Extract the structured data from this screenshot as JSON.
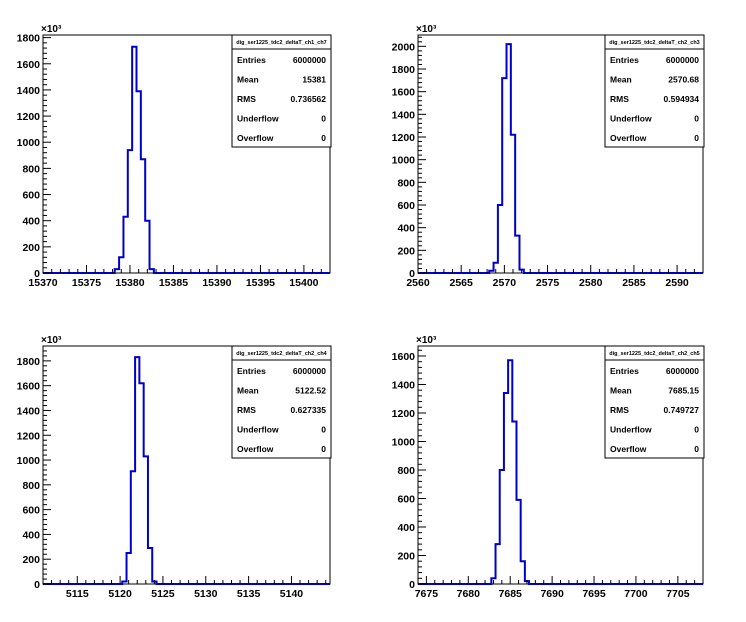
{
  "chart_data": [
    {
      "type": "histogram",
      "title": "dig_ser1225_tdc2_deltaT_ch1_ch7",
      "xlim": [
        15370,
        15403
      ],
      "ylim": [
        0,
        1820
      ],
      "y_exponent_label": "×10³",
      "x_ticks": [
        15370,
        15375,
        15380,
        15385,
        15390,
        15395,
        15400
      ],
      "y_ticks": [
        0,
        200,
        400,
        600,
        800,
        1000,
        1200,
        1400,
        1600,
        1800
      ],
      "bin_width": 0.5,
      "bins": [
        {
          "x": 15378.5,
          "y": 30
        },
        {
          "x": 15379.0,
          "y": 120
        },
        {
          "x": 15379.5,
          "y": 430
        },
        {
          "x": 15380.0,
          "y": 940
        },
        {
          "x": 15380.5,
          "y": 1730
        },
        {
          "x": 15381.0,
          "y": 1390
        },
        {
          "x": 15381.5,
          "y": 870
        },
        {
          "x": 15382.0,
          "y": 400
        },
        {
          "x": 15382.5,
          "y": 30
        }
      ],
      "stats": [
        {
          "label": "Entries",
          "value": "6000000"
        },
        {
          "label": "Mean",
          "value": "15381"
        },
        {
          "label": "RMS",
          "value": "0.736562"
        },
        {
          "label": "Underflow",
          "value": "0"
        },
        {
          "label": "Overflow",
          "value": "0"
        }
      ]
    },
    {
      "type": "histogram",
      "title": "dig_ser1225_tdc2_deltaT_ch2_ch3",
      "xlim": [
        2560,
        2593
      ],
      "ylim": [
        0,
        2100
      ],
      "y_exponent_label": "×10³",
      "x_ticks": [
        2560,
        2565,
        2570,
        2575,
        2580,
        2585,
        2590
      ],
      "y_ticks": [
        0,
        200,
        400,
        600,
        800,
        1000,
        1200,
        1400,
        1600,
        1800,
        2000
      ],
      "bin_width": 0.5,
      "bins": [
        {
          "x": 2568.5,
          "y": 20
        },
        {
          "x": 2569.0,
          "y": 90
        },
        {
          "x": 2569.5,
          "y": 600
        },
        {
          "x": 2570.0,
          "y": 1720
        },
        {
          "x": 2570.5,
          "y": 2020
        },
        {
          "x": 2571.0,
          "y": 1220
        },
        {
          "x": 2571.5,
          "y": 330
        },
        {
          "x": 2572.0,
          "y": 30
        }
      ],
      "stats": [
        {
          "label": "Entries",
          "value": "6000000"
        },
        {
          "label": "Mean",
          "value": "2570.68"
        },
        {
          "label": "RMS",
          "value": "0.594934"
        },
        {
          "label": "Underflow",
          "value": "0"
        },
        {
          "label": "Overflow",
          "value": "0"
        }
      ]
    },
    {
      "type": "histogram",
      "title": "dig_ser1225_tdc2_deltaT_ch2_ch4",
      "xlim": [
        5111,
        5144.5
      ],
      "ylim": [
        0,
        1920
      ],
      "y_exponent_label": "×10³",
      "x_ticks": [
        5115,
        5120,
        5125,
        5130,
        5135,
        5140
      ],
      "y_ticks": [
        0,
        200,
        400,
        600,
        800,
        1000,
        1200,
        1400,
        1600,
        1800
      ],
      "bin_width": 0.5,
      "bins": [
        {
          "x": 5120.5,
          "y": 20
        },
        {
          "x": 5121.0,
          "y": 250
        },
        {
          "x": 5121.5,
          "y": 910
        },
        {
          "x": 5122.0,
          "y": 1830
        },
        {
          "x": 5122.5,
          "y": 1620
        },
        {
          "x": 5123.0,
          "y": 1030
        },
        {
          "x": 5123.5,
          "y": 290
        },
        {
          "x": 5124.0,
          "y": 20
        }
      ],
      "stats": [
        {
          "label": "Entries",
          "value": "6000000"
        },
        {
          "label": "Mean",
          "value": "5122.52"
        },
        {
          "label": "RMS",
          "value": "0.627335"
        },
        {
          "label": "Underflow",
          "value": "0"
        },
        {
          "label": "Overflow",
          "value": "0"
        }
      ]
    },
    {
      "type": "histogram",
      "title": "dig_ser1225_tdc2_deltaT_ch2_ch5",
      "xlim": [
        7674,
        7708
      ],
      "ylim": [
        0,
        1670
      ],
      "y_exponent_label": "×10³",
      "x_ticks": [
        7675,
        7680,
        7685,
        7690,
        7695,
        7700,
        7705
      ],
      "y_ticks": [
        0,
        200,
        400,
        600,
        800,
        1000,
        1200,
        1400,
        1600
      ],
      "bin_width": 0.5,
      "bins": [
        {
          "x": 7683.0,
          "y": 40
        },
        {
          "x": 7683.5,
          "y": 280
        },
        {
          "x": 7684.0,
          "y": 800
        },
        {
          "x": 7684.5,
          "y": 1340
        },
        {
          "x": 7685.0,
          "y": 1570
        },
        {
          "x": 7685.5,
          "y": 1140
        },
        {
          "x": 7686.0,
          "y": 590
        },
        {
          "x": 7686.5,
          "y": 160
        },
        {
          "x": 7687.0,
          "y": 20
        }
      ],
      "stats": [
        {
          "label": "Entries",
          "value": "6000000"
        },
        {
          "label": "Mean",
          "value": "7685.15"
        },
        {
          "label": "RMS",
          "value": "0.749727"
        },
        {
          "label": "Underflow",
          "value": "0"
        },
        {
          "label": "Overflow",
          "value": "0"
        }
      ]
    }
  ],
  "colors": {
    "histogram_line": "#0000cc",
    "axis": "#000000",
    "background": "#ffffff"
  }
}
